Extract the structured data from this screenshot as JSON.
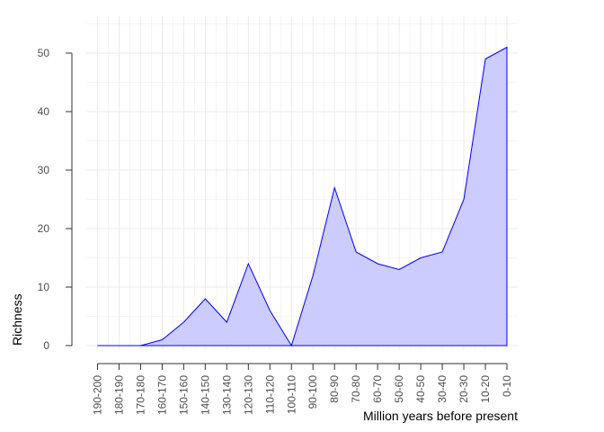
{
  "chart_data": {
    "type": "area",
    "title": "",
    "xlabel": "Million years before present",
    "ylabel": "Richness",
    "categories": [
      "190-200",
      "180-190",
      "170-180",
      "160-170",
      "150-160",
      "140-150",
      "130-140",
      "120-130",
      "110-120",
      "100-110",
      "90-100",
      "80-90",
      "70-80",
      "60-70",
      "50-60",
      "40-50",
      "30-40",
      "20-30",
      "10-20",
      "0-10"
    ],
    "series": [
      {
        "values": [
          0,
          0,
          0,
          1,
          4,
          8,
          4,
          14,
          6,
          0,
          12,
          27,
          16,
          14,
          13,
          15,
          16,
          25,
          49,
          51
        ]
      }
    ],
    "y_ticks": [
      0,
      10,
      20,
      30,
      40,
      50
    ],
    "ylim": [
      0,
      55
    ],
    "grid": true,
    "colors": {
      "line": "#0000ff",
      "fill": "#ccccff",
      "grid": "#ebebeb",
      "axis": "#333333",
      "tick_text": "#4d4d4d"
    }
  }
}
